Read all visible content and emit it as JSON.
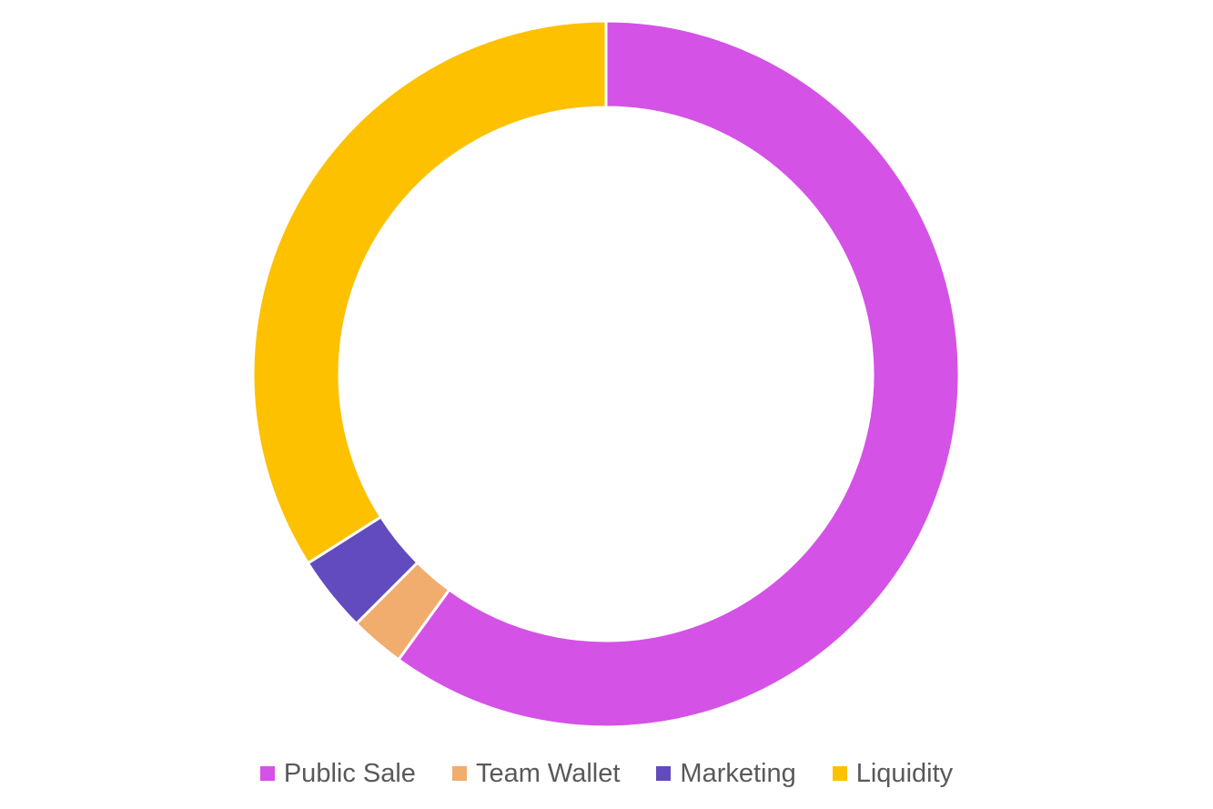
{
  "chart_data": {
    "type": "donut",
    "title": "",
    "slices": [
      {
        "label": "Public Sale",
        "value": 60,
        "color": "#D452E6"
      },
      {
        "label": "Team Wallet",
        "value": 2.5,
        "color": "#F0AD6E"
      },
      {
        "label": "Marketing",
        "value": 3.5,
        "color": "#614BBE"
      },
      {
        "label": "Liquidity",
        "value": 34,
        "color": "#FDC100"
      }
    ],
    "start_angle": "12 o'clock",
    "direction": "clockwise",
    "legend_position": "bottom"
  }
}
